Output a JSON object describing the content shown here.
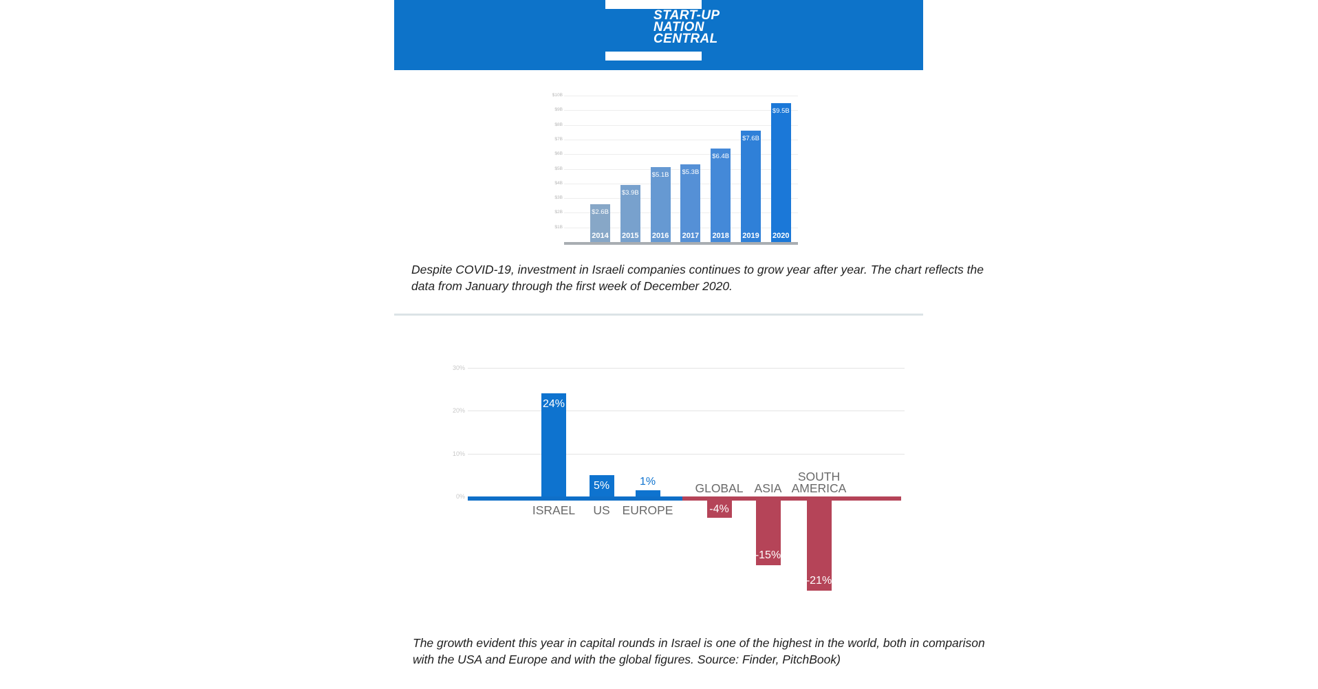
{
  "header": {
    "banner_color": "#0d73c9",
    "logo_lines": [
      "START-UP",
      "NATION",
      "CENTRAL"
    ]
  },
  "chart_data": [
    {
      "type": "bar",
      "title": "",
      "xlabel": "",
      "ylabel": "",
      "categories": [
        "2014",
        "2015",
        "2016",
        "2017",
        "2018",
        "2019",
        "2020"
      ],
      "values": [
        2.6,
        3.9,
        5.1,
        5.3,
        6.4,
        7.6,
        9.5
      ],
      "bar_labels": [
        "$2.6B",
        "$3.9B",
        "$5.1B",
        "$5.3B",
        "$6.4B",
        "$7.6B",
        "$9.5B"
      ],
      "ylim": [
        0,
        10
      ],
      "yticks": [
        1,
        2,
        3,
        4,
        5,
        6,
        7,
        8,
        9,
        10
      ],
      "ytick_labels": [
        "$1B",
        "$2B",
        "$3B",
        "$4B",
        "$5B",
        "$6B",
        "$7B",
        "$8B",
        "$9B",
        "$10B"
      ],
      "grid": true,
      "legend_position": "none",
      "bar_colors": [
        "#87a7c7",
        "#78a1cd",
        "#6699d2",
        "#5590d6",
        "#4489d8",
        "#2f80d8",
        "#1b78d8"
      ],
      "axis_color": "#a8adb2",
      "grid_color": "#ededed",
      "tick_color": "#b6b6b6"
    },
    {
      "type": "bar",
      "title": "",
      "xlabel": "",
      "ylabel": "",
      "categories": [
        "ISRAEL",
        "US",
        "EUROPE",
        "GLOBAL",
        "ASIA",
        "SOUTH\nAMERICA"
      ],
      "values": [
        24,
        5,
        1,
        -4,
        -15,
        -21
      ],
      "bar_labels": [
        "24%",
        "5%",
        "1%",
        "-4%",
        "-15%",
        "-21%"
      ],
      "ylim": [
        -25,
        32
      ],
      "yticks": [
        0,
        10,
        20,
        30
      ],
      "ytick_labels": [
        "0%",
        "10%",
        "20%",
        "30%"
      ],
      "grid": true,
      "legend_position": "none",
      "positive_color": "#0e73cf",
      "negative_color": "#b54458",
      "axis_positive_color": "#0f6fc8",
      "axis_negative_color": "#b54458",
      "grid_color": "#e4e4e4",
      "tick_color": "#c8c8c8",
      "category_label_color": "#696969"
    }
  ],
  "captions": {
    "chart1": {
      "lines": [
        "Despite COVID-19, investment in Israeli companies continues to grow year after year. The chart reflects the",
        "data from January through the first week of December 2020."
      ]
    },
    "chart2": {
      "lines": [
        "The growth evident this year in capital rounds in Israel is one of the highest in the world, both in comparison",
        "with the USA and Europe and with the global figures. Source: Finder, PitchBook)"
      ]
    }
  }
}
